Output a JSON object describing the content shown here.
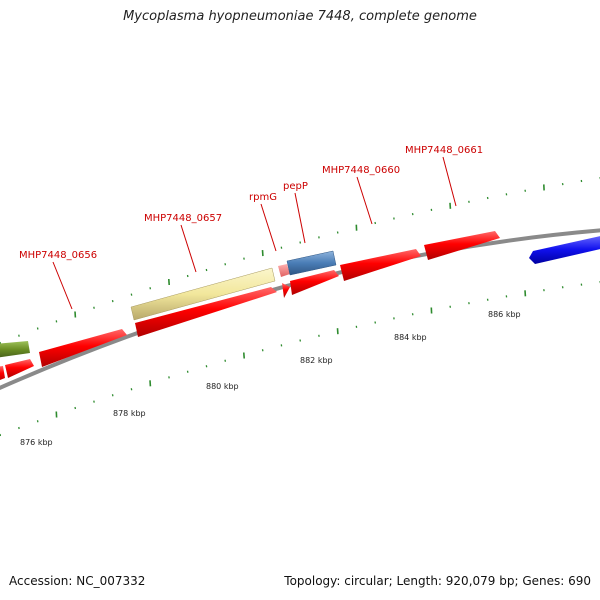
{
  "title": "Mycoplasma hyopneumoniae 7448, complete genome",
  "footer": {
    "accession": "Accession: NC_007332",
    "topology": "Topology: circular; Length: 920,079 bp; Genes: 690"
  },
  "colors": {
    "cds_red": "#ff0000",
    "cds_yellow": "#f5eda0",
    "cds_steelblue": "#4f82b8",
    "cds_blue": "#1a1aff",
    "cds_olive": "#6b8e23",
    "rna_pink": "#f08080",
    "backbone": "#888888",
    "tick_green": "#2e8b2e",
    "label_red": "#cc0000"
  },
  "scale_labels": [
    "876 kbp",
    "878 kbp",
    "880 kbp",
    "882 kbp",
    "884 kbp",
    "886 kbp"
  ],
  "gene_labels": [
    {
      "text": "MHP7448_0656"
    },
    {
      "text": "MHP7448_0657"
    },
    {
      "text": "rpmG"
    },
    {
      "text": "pepP"
    },
    {
      "text": "MHP7448_0660"
    },
    {
      "text": "MHP7448_0661"
    }
  ]
}
